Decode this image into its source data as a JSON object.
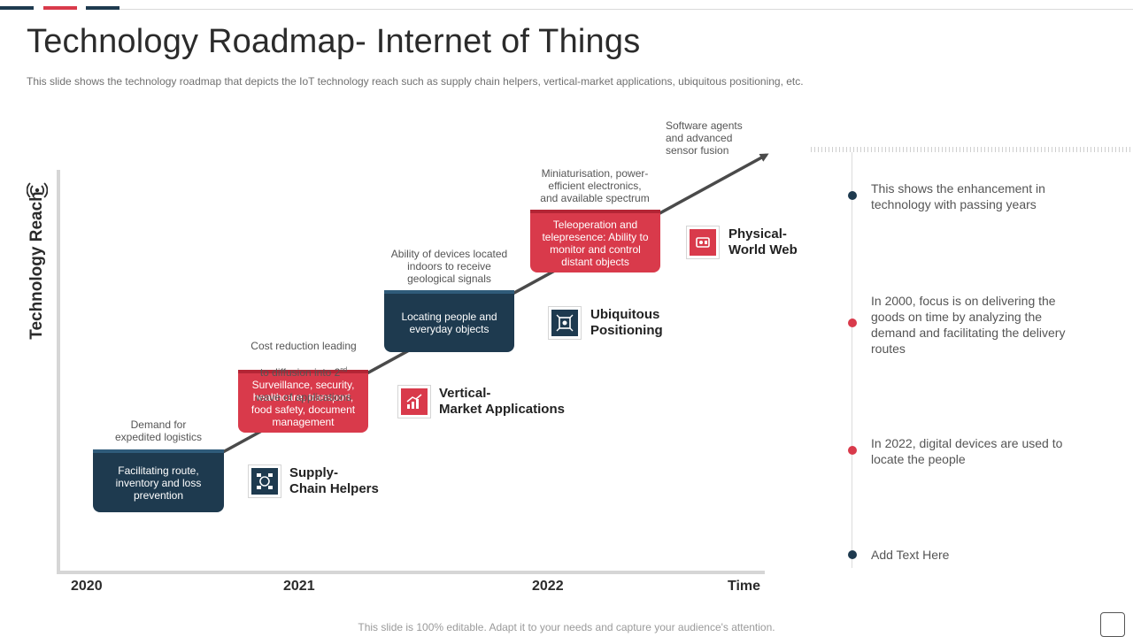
{
  "header": {
    "title": "Technology Roadmap- Internet of Things",
    "subtitle": "This slide shows the technology roadmap that depicts the IoT technology reach such as supply chain helpers, vertical-market applications, ubiquitous positioning, etc."
  },
  "colors": {
    "dark": "#1e3a4f",
    "red": "#d93a4b"
  },
  "axis": {
    "y_label": "Technology Reach",
    "x_end_label": "Time",
    "years": [
      "2020",
      "2021",
      "2022"
    ]
  },
  "steps": [
    {
      "box_text": "Facilitating route, inventory and loss prevention",
      "note": "Demand for\nexpedited logistics",
      "style": "dark"
    },
    {
      "box_text": "Surveillance, security, healthcare, transport, food safety, document management",
      "note_line1": "Cost reduction leading",
      "note_line2": "to diffusion into 2",
      "note_sup": "nd",
      "note_line3": "wave of applications",
      "style": "red"
    },
    {
      "box_text": "Locating people and everyday objects",
      "note": "Ability of devices located\nindoors to receive\ngeological signals",
      "style": "dark"
    },
    {
      "box_text": "Teleoperation and telepresence: Ability to monitor and control distant objects",
      "note": "Miniaturisation, power-\nefficient electronics,\nand available spectrum",
      "style": "red"
    }
  ],
  "top_note": "Software agents\nand advanced\nsensor fusion",
  "labels": [
    {
      "text": "Supply-\nChain Helpers",
      "icon": "supply-chain-icon"
    },
    {
      "text": "Vertical-\nMarket Applications",
      "icon": "growth-chart-icon"
    },
    {
      "text": "Ubiquitous\nPositioning",
      "icon": "positioning-icon"
    },
    {
      "text": "Physical-\nWorld Web",
      "icon": "web-device-icon"
    }
  ],
  "timeline": [
    {
      "text": "This shows the enhancement in technology with passing years",
      "color": "#1e3a4f"
    },
    {
      "text": "In 2000, focus is on delivering the goods on time by analyzing the demand and facilitating the delivery routes",
      "color": "#d93a4b"
    },
    {
      "text": "In 2022, digital devices are used to locate the people",
      "color": "#d93a4b"
    },
    {
      "text": "Add Text Here",
      "color": "#1e3a4f"
    }
  ],
  "footer": "This slide is 100% editable. Adapt it to your needs and capture your audience's attention."
}
